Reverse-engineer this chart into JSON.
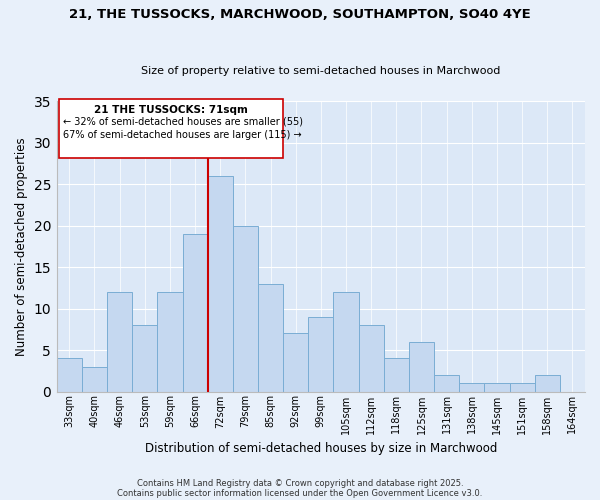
{
  "title_line1": "21, THE TUSSOCKS, MARCHWOOD, SOUTHAMPTON, SO40 4YE",
  "title_line2": "Size of property relative to semi-detached houses in Marchwood",
  "xlabel": "Distribution of semi-detached houses by size in Marchwood",
  "ylabel": "Number of semi-detached properties",
  "categories": [
    "33sqm",
    "40sqm",
    "46sqm",
    "53sqm",
    "59sqm",
    "66sqm",
    "72sqm",
    "79sqm",
    "85sqm",
    "92sqm",
    "99sqm",
    "105sqm",
    "112sqm",
    "118sqm",
    "125sqm",
    "131sqm",
    "138sqm",
    "145sqm",
    "151sqm",
    "158sqm",
    "164sqm"
  ],
  "values": [
    4,
    3,
    12,
    8,
    12,
    19,
    26,
    20,
    13,
    7,
    9,
    12,
    8,
    4,
    6,
    2,
    1,
    1,
    1,
    2,
    0
  ],
  "bar_color": "#c5d8f0",
  "bar_edge_color": "#7aadd4",
  "highlight_index": 6,
  "annotation_title": "21 THE TUSSOCKS: 71sqm",
  "annotation_line2": "← 32% of semi-detached houses are smaller (55)",
  "annotation_line3": "67% of semi-detached houses are larger (115) →",
  "vline_color": "#cc0000",
  "ylim": [
    0,
    35
  ],
  "yticks": [
    0,
    5,
    10,
    15,
    20,
    25,
    30,
    35
  ],
  "footnote1": "Contains HM Land Registry data © Crown copyright and database right 2025.",
  "footnote2": "Contains public sector information licensed under the Open Government Licence v3.0.",
  "bg_color": "#e8f0fa",
  "plot_bg_color": "#dce8f7"
}
